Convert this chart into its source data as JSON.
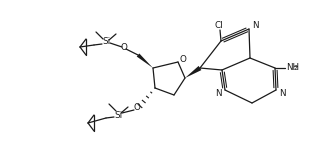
{
  "bg": "#ffffff",
  "lc": "#1a1a1a",
  "lw": 0.9,
  "fs": 6.8,
  "xlim": [
    0,
    318
  ],
  "ylim": [
    0,
    162
  ]
}
